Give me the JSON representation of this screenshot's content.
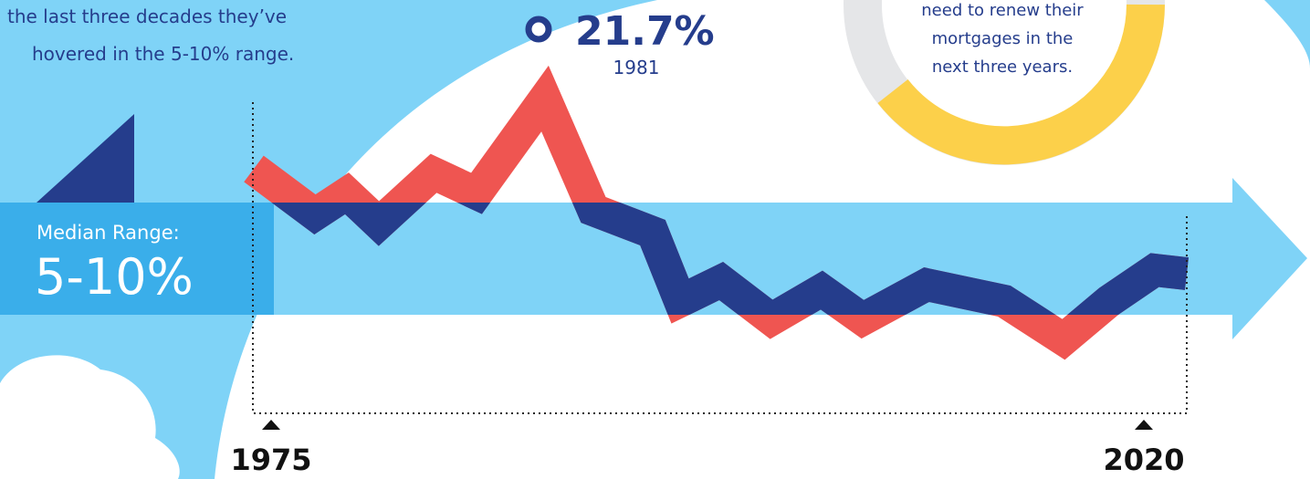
{
  "intro": {
    "lines": [
      "the last three decades they’ve",
      "hovered in the 5-10% range."
    ]
  },
  "peak": {
    "value": "21.7%",
    "year": "1981"
  },
  "donut_text": {
    "lines": [
      "need to renew their",
      "mortgages in the",
      "next three years."
    ]
  },
  "median": {
    "label": "Median Range:",
    "value": "5-10%"
  },
  "axis": {
    "start": "1975",
    "end": "2020"
  }
}
